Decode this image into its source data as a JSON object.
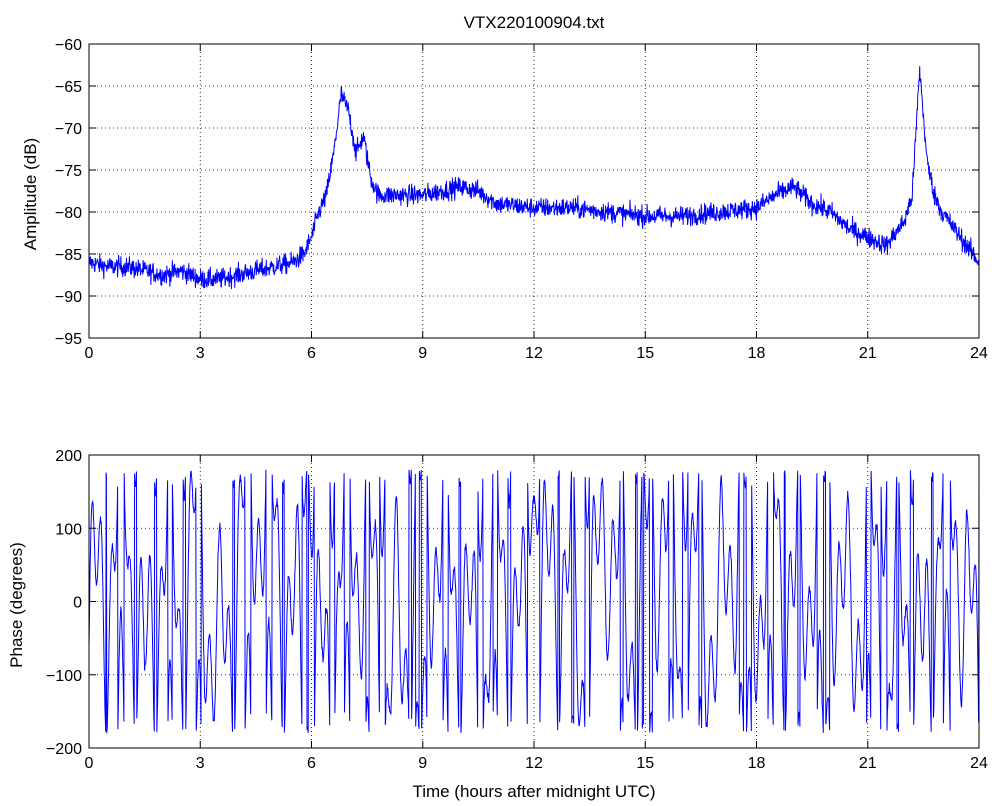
{
  "chart_data": [
    {
      "type": "line",
      "title": "VTX220100904.txt",
      "xlabel": "",
      "ylabel": "Amplitude (dB)",
      "xlim": [
        0,
        24
      ],
      "ylim": [
        -95,
        -60
      ],
      "xticks": [
        0,
        3,
        6,
        9,
        12,
        15,
        18,
        21,
        24
      ],
      "yticks": [
        -95,
        -90,
        -85,
        -80,
        -75,
        -70,
        -65,
        -60
      ],
      "grid": true,
      "line_color": "#0000ff",
      "noise_amplitude": 1.3,
      "series": [
        {
          "x": [
            0,
            0.5,
            1,
            1.5,
            2,
            2.5,
            3,
            3.5,
            4,
            4.5,
            5,
            5.5,
            5.8,
            6,
            6.2,
            6.4,
            6.6,
            6.8,
            7,
            7.2,
            7.4,
            7.6,
            7.8,
            8,
            9,
            10,
            10.5,
            11,
            12,
            13,
            14,
            15,
            16,
            17,
            18,
            18.5,
            19,
            19.5,
            20,
            20.5,
            21,
            21.5,
            22,
            22.2,
            22.4,
            22.6,
            22.8,
            23,
            23.5,
            24
          ],
          "y": [
            -86,
            -86.5,
            -86.5,
            -87,
            -87.5,
            -87,
            -88,
            -88,
            -87.5,
            -87,
            -86.5,
            -86,
            -85,
            -83,
            -80,
            -78,
            -73,
            -66,
            -68,
            -73,
            -71,
            -76,
            -78,
            -78,
            -78,
            -77,
            -77.5,
            -79,
            -79.5,
            -79.5,
            -80,
            -80.5,
            -80.5,
            -80,
            -79.5,
            -78,
            -77,
            -79,
            -80,
            -82,
            -83,
            -84,
            -81,
            -78,
            -63,
            -74,
            -78,
            -80,
            -83,
            -86
          ]
        }
      ]
    },
    {
      "type": "line",
      "title": "",
      "xlabel": "Time (hours after midnight UTC)",
      "ylabel": "Phase (degrees)",
      "xlim": [
        0,
        24
      ],
      "ylim": [
        -200,
        200
      ],
      "xticks": [
        0,
        3,
        6,
        9,
        12,
        15,
        18,
        21,
        24
      ],
      "yticks": [
        -200,
        -100,
        0,
        100,
        200
      ],
      "grid": true,
      "line_color": "#0000ff",
      "wrap_range": [
        -180,
        180
      ],
      "series": [
        {
          "x": [
            0,
            0.5,
            1,
            1.5,
            2,
            2.5,
            3,
            3.5,
            4,
            4.5,
            5,
            5.5,
            6,
            6.5,
            7,
            7.5,
            8,
            8.5,
            9,
            9.5,
            10,
            10.5,
            11,
            11.5,
            12,
            12.5,
            13,
            13.5,
            14,
            14.5,
            15,
            15.5,
            16,
            16.5,
            17,
            17.5,
            18,
            18.5,
            19,
            19.5,
            20,
            20.5,
            21,
            21.5,
            22,
            22.5,
            23,
            23.5,
            24
          ],
          "y": [
            -60,
            40,
            150,
            -150,
            90,
            -20,
            120,
            -130,
            60,
            170,
            100,
            -60,
            -140,
            -90,
            130,
            60,
            -120,
            -60,
            140,
            80,
            20,
            -150,
            90,
            -40,
            -170,
            60,
            0,
            -100,
            150,
            -50,
            40,
            160,
            -110,
            70,
            -80,
            170,
            30,
            120,
            -30,
            90,
            160,
            -90,
            120,
            -150,
            40,
            -140,
            170,
            90,
            -170
          ]
        }
      ]
    }
  ]
}
